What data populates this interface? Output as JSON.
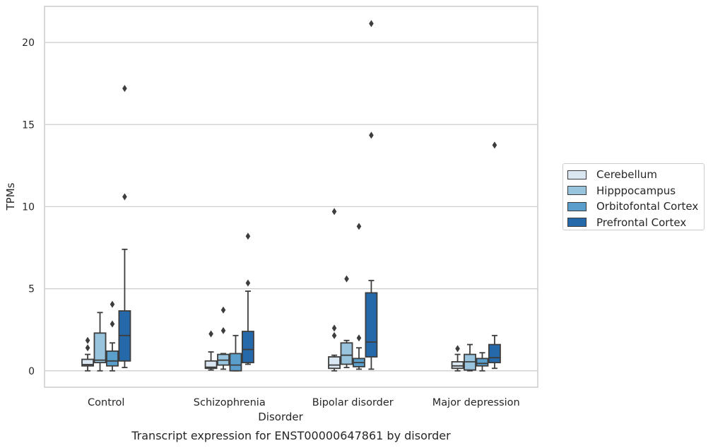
{
  "chart_data": {
    "type": "box",
    "title": "Transcript expression for ENST00000647861 by disorder",
    "xlabel": "Disorder",
    "ylabel": "TPMs",
    "ylim": [
      -1,
      22.2
    ],
    "yticks": [
      0,
      5,
      10,
      15,
      20
    ],
    "categories": [
      "Control",
      "Schizophrenia",
      "Bipolar disorder",
      "Major depression"
    ],
    "grid": "horizontal",
    "legend_position": "right",
    "series": [
      {
        "name": "Cerebellum",
        "color": "#dae7f3",
        "boxes": [
          {
            "whislo": 0.0,
            "q1": 0.3,
            "med": 0.38,
            "q3": 0.7,
            "whishi": 1.0,
            "fliers": [
              1.4,
              1.85
            ]
          },
          {
            "whislo": 0.05,
            "q1": 0.15,
            "med": 0.22,
            "q3": 0.6,
            "whishi": 1.15,
            "fliers": [
              2.25
            ]
          },
          {
            "whislo": 0.0,
            "q1": 0.15,
            "med": 0.35,
            "q3": 0.85,
            "whishi": 0.95,
            "fliers": [
              2.15,
              2.6,
              9.7
            ]
          },
          {
            "whislo": 0.0,
            "q1": 0.15,
            "med": 0.3,
            "q3": 0.55,
            "whishi": 1.0,
            "fliers": [
              1.35
            ]
          }
        ]
      },
      {
        "name": "Hipppocampus",
        "color": "#99c4dd",
        "boxes": [
          {
            "whislo": 0.0,
            "q1": 0.5,
            "med": 0.65,
            "q3": 2.3,
            "whishi": 3.55,
            "fliers": []
          },
          {
            "whislo": 0.1,
            "q1": 0.35,
            "med": 0.65,
            "q3": 1.0,
            "whishi": 1.05,
            "fliers": [
              2.45,
              3.7
            ]
          },
          {
            "whislo": 0.2,
            "q1": 0.4,
            "med": 0.95,
            "q3": 1.7,
            "whishi": 1.85,
            "fliers": [
              5.6
            ]
          },
          {
            "whislo": 0.0,
            "q1": 0.05,
            "med": 0.55,
            "q3": 1.0,
            "whishi": 1.6,
            "fliers": []
          }
        ]
      },
      {
        "name": "Orbitofontal Cortex",
        "color": "#5a9fcb",
        "boxes": [
          {
            "whislo": 0.0,
            "q1": 0.3,
            "med": 0.6,
            "q3": 1.2,
            "whishi": 1.7,
            "fliers": [
              2.85,
              4.05
            ]
          },
          {
            "whislo": 0.0,
            "q1": 0.0,
            "med": 0.35,
            "q3": 1.05,
            "whishi": 2.15,
            "fliers": []
          },
          {
            "whislo": 0.1,
            "q1": 0.25,
            "med": 0.5,
            "q3": 0.75,
            "whishi": 1.4,
            "fliers": [
              2.0,
              8.8
            ]
          },
          {
            "whislo": 0.0,
            "q1": 0.3,
            "med": 0.45,
            "q3": 0.75,
            "whishi": 1.1,
            "fliers": []
          }
        ]
      },
      {
        "name": "Prefrontal Cortex",
        "color": "#2669aa",
        "boxes": [
          {
            "whislo": 0.2,
            "q1": 0.6,
            "med": 2.15,
            "q3": 3.65,
            "whishi": 7.4,
            "fliers": [
              10.6,
              17.2
            ]
          },
          {
            "whislo": 0.4,
            "q1": 0.5,
            "med": 1.3,
            "q3": 2.4,
            "whishi": 4.85,
            "fliers": [
              5.35,
              8.2
            ]
          },
          {
            "whislo": 0.1,
            "q1": 0.85,
            "med": 1.75,
            "q3": 4.75,
            "whishi": 5.5,
            "fliers": [
              14.35,
              21.15
            ]
          },
          {
            "whislo": 0.15,
            "q1": 0.5,
            "med": 0.8,
            "q3": 1.6,
            "whishi": 2.15,
            "fliers": [
              13.75
            ]
          }
        ]
      }
    ]
  }
}
